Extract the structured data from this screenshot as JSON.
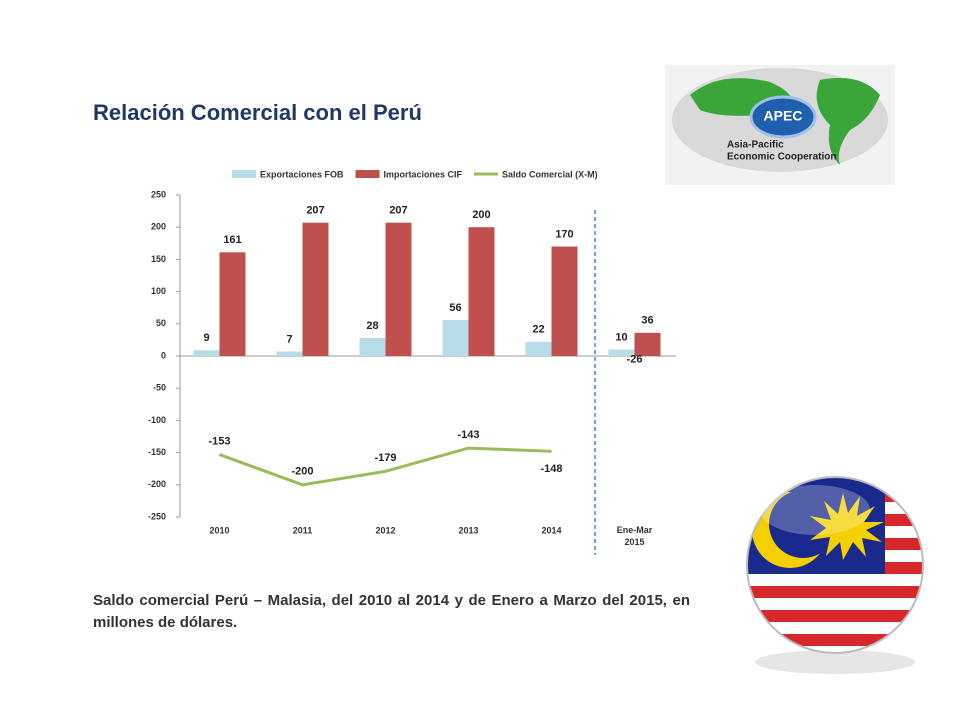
{
  "header": {
    "title": "Relación Comercial con el Perú"
  },
  "logo": {
    "name": "APEC",
    "line1": "Asia-Pacific",
    "line2": "Economic Cooperation"
  },
  "chart_data": {
    "type": "bar",
    "categories": [
      "2010",
      "2011",
      "2012",
      "2013",
      "2014",
      "Ene-Mar 2015"
    ],
    "series": [
      {
        "name": "Exportaciones FOB",
        "color": "#b7dde8",
        "values": [
          9,
          7,
          28,
          56,
          22,
          10
        ]
      },
      {
        "name": "Importaciones CIF",
        "color": "#c0504d",
        "values": [
          161,
          207,
          207,
          200,
          170,
          36
        ]
      },
      {
        "name": "Saldo Comercial (X-M)",
        "color": "#9bbb59",
        "type": "line",
        "values": [
          -153,
          -200,
          -179,
          -143,
          -148,
          -26
        ]
      }
    ],
    "ylim": [
      -250,
      250
    ],
    "yticks": [
      -250,
      -200,
      -150,
      -100,
      -50,
      0,
      50,
      100,
      150,
      200,
      250
    ],
    "grid": false
  },
  "caption": "Saldo comercial Perú – Malasia, del 2010 al 2014 y de Enero a Marzo del 2015, en millones de dólares."
}
